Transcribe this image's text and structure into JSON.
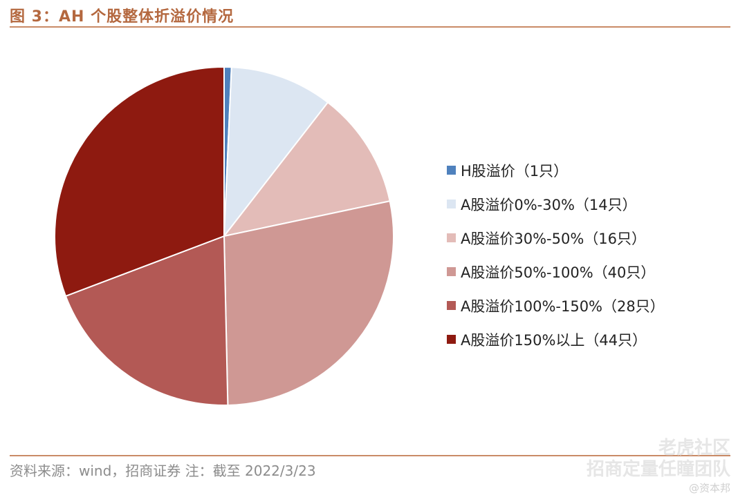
{
  "figure": {
    "title": "图 3：AH 个股整体折溢价情况",
    "source": "资料来源：wind，招商证券 注：截至 2022/3/23"
  },
  "chart_data": {
    "type": "pie",
    "title": "",
    "start_angle_deg": 0,
    "direction": "clockwise",
    "legend_position": "right",
    "slices": [
      {
        "label": "H股溢价（1只）",
        "value": 1,
        "color": "#4f81bd"
      },
      {
        "label": "A股溢价0%-30%（14只）",
        "value": 14,
        "color": "#dce6f2"
      },
      {
        "label": "A股溢价30%-50%（16只）",
        "value": 16,
        "color": "#e3bcb8"
      },
      {
        "label": "A股溢价50%-100%（40只）",
        "value": 40,
        "color": "#cf9894"
      },
      {
        "label": "A股溢价100%-150%（28只）",
        "value": 28,
        "color": "#b35955"
      },
      {
        "label": "A股溢价150%以上（44只）",
        "value": 44,
        "color": "#8e1a10"
      }
    ]
  },
  "watermark": {
    "line1": "老虎社区",
    "line2": "招商定量任瞳团队",
    "line3": "@资本邦"
  }
}
